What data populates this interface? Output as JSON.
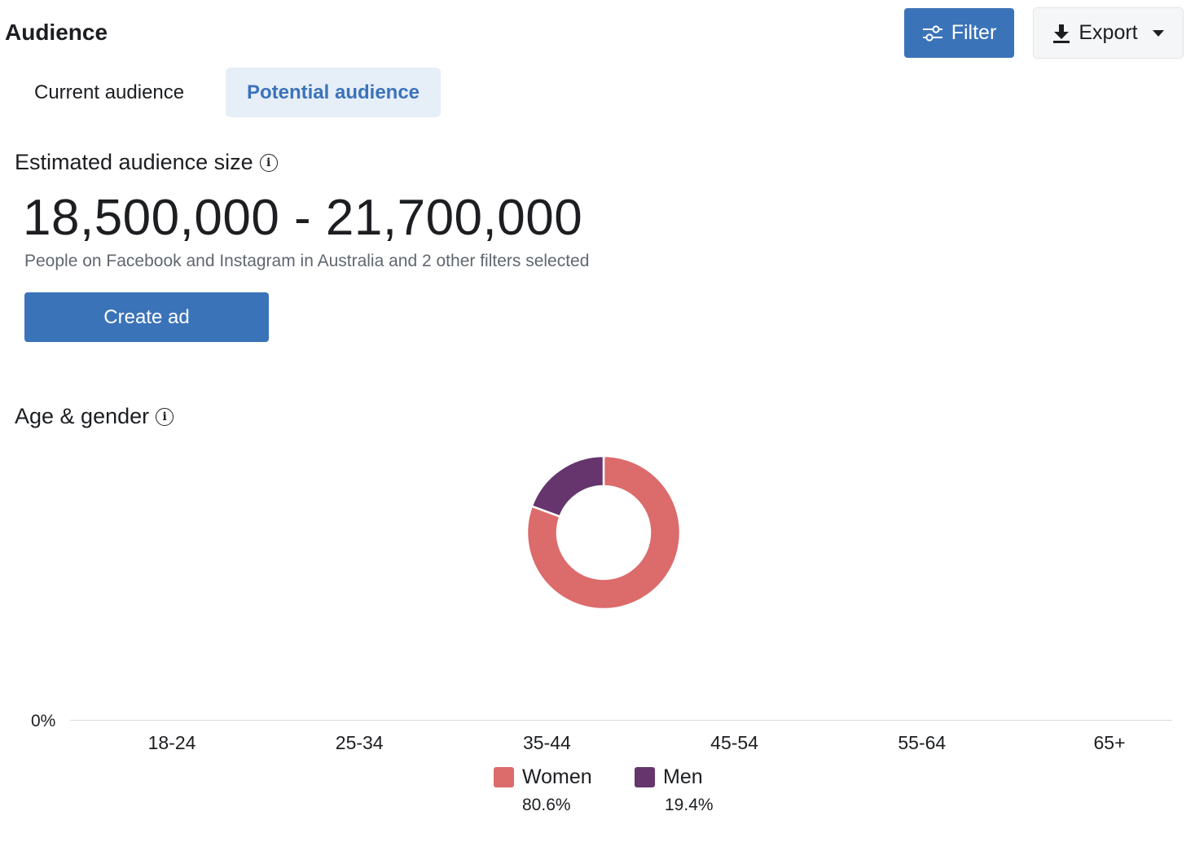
{
  "header": {
    "title": "Audience",
    "filter_label": "Filter",
    "export_label": "Export"
  },
  "tabs": [
    {
      "label": "Current audience",
      "active": false
    },
    {
      "label": "Potential audience",
      "active": true
    }
  ],
  "estimate": {
    "title": "Estimated audience size",
    "value": "18,500,000 - 21,700,000",
    "description": "People on Facebook and Instagram in Australia and 2 other filters selected",
    "create_label": "Create ad"
  },
  "age_gender": {
    "title": "Age & gender"
  },
  "colors": {
    "accent": "#3b73b9",
    "women": "#dc6b6b",
    "men": "#66356e"
  },
  "chart_data": [
    {
      "type": "pie",
      "categories": [
        "Women",
        "Men"
      ],
      "values": [
        80.6,
        19.4
      ],
      "labels": [
        "80.6%",
        "19.4%"
      ],
      "colors": [
        "#dc6b6b",
        "#66356e"
      ]
    },
    {
      "type": "bar",
      "categories": [
        "18-24",
        "25-34",
        "35-44",
        "45-54",
        "55-64",
        "65+"
      ],
      "y_tick_labels": [
        "0%"
      ],
      "series": [
        {
          "name": "Women",
          "values": [
            0,
            0,
            0,
            0,
            0,
            0
          ]
        },
        {
          "name": "Men",
          "values": [
            0,
            0,
            0,
            0,
            0,
            0
          ]
        }
      ]
    }
  ]
}
